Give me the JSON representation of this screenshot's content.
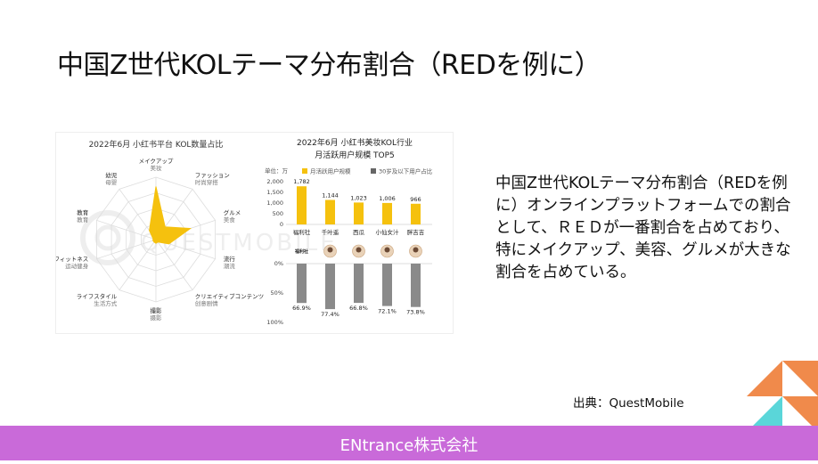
{
  "slide": {
    "title": "中国Z世代KOLテーマ分布割合（REDを例に）",
    "body": "中国Z世代KOLテーマ分布割合（REDを例に）オンラインプラットフォームでの割合として、ＲＥＤが一番割合を占めており、特にメイクアップ、美容、グルメが大きな割合を占めている。",
    "source": "出典：QuestMobile",
    "footer": "ENtrance株式会社"
  },
  "colors": {
    "accent_yellow": "#f5c10e",
    "bar_gray": "#8a8a8a",
    "footer_purple": "#c96ad9",
    "deco_orange": "#f08a4b",
    "deco_cyan": "#5ad6d9"
  },
  "watermark": "QUESTMOBILE",
  "chart_data": [
    {
      "type": "radar",
      "title": "2022年6月 小红书平台 KOL数量占比",
      "axes": [
        {
          "cn": "美妆",
          "jp": "メイクアップ"
        },
        {
          "cn": "时尚穿搭",
          "jp": "ファッション"
        },
        {
          "cn": "美食",
          "jp": "グルメ"
        },
        {
          "cn": "潮流",
          "jp": "流行"
        },
        {
          "cn": "创意剧情",
          "jp": "クリエイティブコンテンツ"
        },
        {
          "cn": "摄影",
          "jp": "撮影"
        },
        {
          "cn": "生活方式",
          "jp": "ライフスタイル"
        },
        {
          "cn": "运动健身",
          "jp": "フィットネス"
        },
        {
          "cn": "教育",
          "jp": "教育"
        },
        {
          "cn": "母婴",
          "jp": "幼児"
        }
      ],
      "values": [
        0.85,
        0.25,
        0.58,
        0.22,
        0.05,
        0.06,
        0.05,
        0.05,
        0.05,
        0.18
      ]
    },
    {
      "type": "bar",
      "title": "2022年6月 小红书美妆KOL行业",
      "subtitle": "月活跃用户规模 TOP5",
      "unit_label": "单位：万",
      "legend": [
        "月活跃用户规模",
        "30岁及以下用户占比"
      ],
      "categories": [
        "福利社",
        "千叶遥",
        "西瓜",
        "小仙女汁",
        "胖吉吉"
      ],
      "series": [
        {
          "name": "月活跃用户规模",
          "values": [
            1782,
            1144,
            1023,
            1006,
            966
          ],
          "labels": [
            "1,782",
            "1,144",
            "1,023",
            "1,006",
            "966"
          ]
        },
        {
          "name": "30岁及以下用户占比",
          "values": [
            66.9,
            77.4,
            66.8,
            72.1,
            73.8
          ],
          "labels": [
            "66.9%",
            "77.4%",
            "66.8%",
            "72.1%",
            "73.8%"
          ]
        }
      ],
      "y_ticks_top": [
        "2,000",
        "1,500",
        "1,000",
        "500",
        "0"
      ],
      "y_ticks_bottom": [
        "0%",
        "50%",
        "100%"
      ],
      "ylim_top": [
        0,
        2000
      ],
      "ylim_bottom": [
        0,
        100
      ],
      "first_avatar_text": "福利社"
    }
  ]
}
